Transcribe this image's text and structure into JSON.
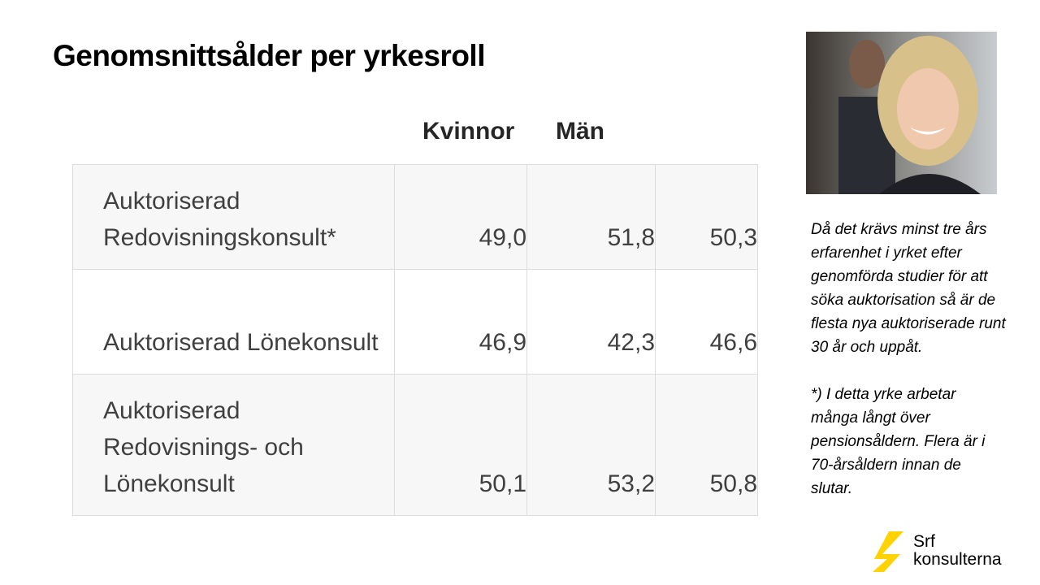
{
  "header": {
    "title": "Genomsnittsålder per yrkesroll"
  },
  "table": {
    "columns": [
      "Kvinnor",
      "Män"
    ],
    "rows": [
      [
        "Auktoriserad Redovisningskonsult*",
        "49,0",
        "51,8",
        "50,3"
      ],
      [
        "Auktoriserad Lönekonsult",
        "46,9",
        "42,3",
        "46,6"
      ],
      [
        "Auktoriserad Redovisnings- och Lönekonsult",
        "50,1",
        "53,2",
        "50,8"
      ]
    ]
  },
  "note": {
    "paragraphs": [
      "Då det krävs minst tre års erfarenhet  i yrket efter genomförda studier för att söka auktorisation så är de flesta nya auktoriserade runt 30 år och uppåt.",
      "*) I detta yrke arbetar många långt över pensionsåldern.  Flera är i 70-årsåldern innan de slutar."
    ]
  },
  "logo": {
    "line1": "Srf",
    "line2": "konsulterna"
  }
}
